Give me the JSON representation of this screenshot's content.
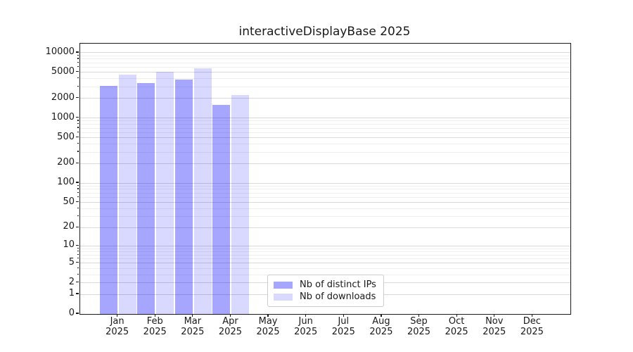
{
  "title": "interactiveDisplayBase 2025",
  "legend": {
    "items": [
      {
        "label": "Nb of distinct IPs",
        "color": "rgba(0,0,255,0.35)"
      },
      {
        "label": "Nb of downloads",
        "color": "rgba(0,0,255,0.15)"
      }
    ]
  },
  "chart_data": {
    "type": "bar",
    "title": "interactiveDisplayBase 2025",
    "categories": [
      "Jan 2025",
      "Feb 2025",
      "Mar 2025",
      "Apr 2025",
      "May 2025",
      "Jun 2025",
      "Jul 2025",
      "Aug 2025",
      "Sep 2025",
      "Oct 2025",
      "Nov 2025",
      "Dec 2025"
    ],
    "series": [
      {
        "name": "Nb of distinct IPs",
        "color": "rgba(0,0,255,0.35)",
        "values": [
          3100,
          3470,
          3890,
          1580,
          null,
          null,
          null,
          null,
          null,
          null,
          null,
          null
        ]
      },
      {
        "name": "Nb of downloads",
        "color": "rgba(0,0,255,0.15)",
        "values": [
          4600,
          5050,
          5800,
          2230,
          null,
          null,
          null,
          null,
          null,
          null,
          null,
          null
        ]
      }
    ],
    "xlabel": "",
    "ylabel": "",
    "yscale": "log1p",
    "ylim": [
      0,
      13800
    ],
    "y_major_ticks": [
      0,
      1,
      2,
      5,
      10,
      20,
      50,
      100,
      200,
      500,
      1000,
      2000,
      5000,
      10000
    ],
    "y_minor_ticks": [
      3,
      4,
      6,
      7,
      8,
      9,
      30,
      40,
      60,
      70,
      80,
      90,
      300,
      400,
      600,
      700,
      800,
      900,
      3000,
      4000,
      6000,
      7000,
      8000,
      9000
    ],
    "grid": "on",
    "legend_position": "inside bottom-center",
    "colors": {
      "grid_major": "#d9d9d9",
      "grid_minor": "#efefef",
      "spine": "#1a1a1a",
      "text": "#191919"
    }
  }
}
